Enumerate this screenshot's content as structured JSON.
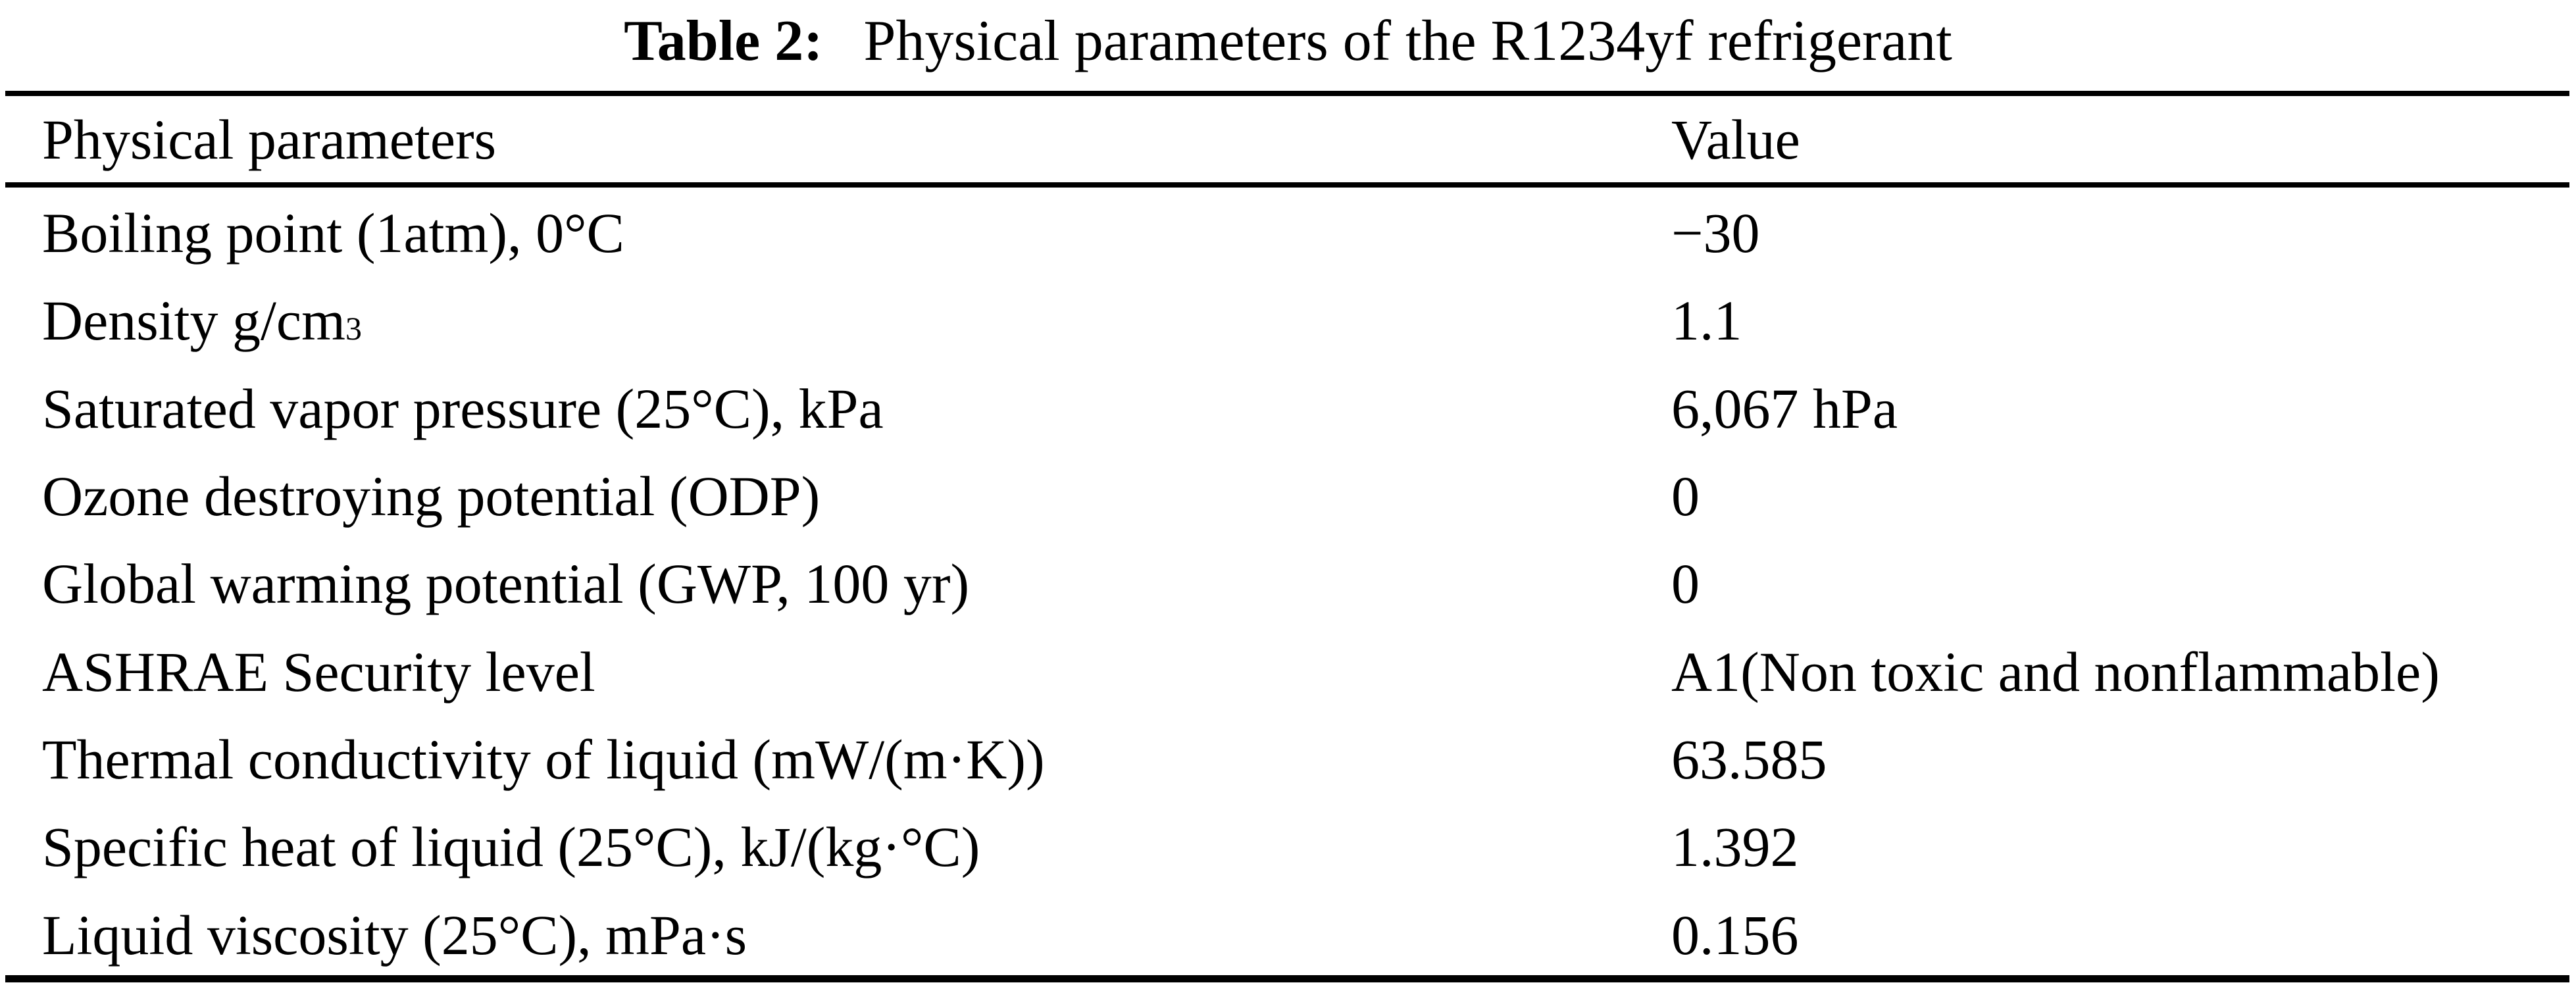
{
  "colors": {
    "text": "#000000",
    "background": "#ffffff",
    "rule": "#000000"
  },
  "table": {
    "caption": {
      "label": "Table 2:",
      "text": "Physical parameters of the R1234yf refrigerant"
    },
    "columns": {
      "parameter": "Physical parameters",
      "value": "Value"
    },
    "rows": [
      {
        "param_parts": [
          {
            "text": "Boiling point (1atm), 0°C"
          }
        ],
        "value": "−30"
      },
      {
        "param_parts": [
          {
            "text": "Density g/cm"
          },
          {
            "sup": "3"
          }
        ],
        "value": "1.1"
      },
      {
        "param_parts": [
          {
            "text": "Saturated vapor pressure (25°C), kPa"
          }
        ],
        "value": "6,067 hPa"
      },
      {
        "param_parts": [
          {
            "text": "Ozone destroying potential (ODP)"
          }
        ],
        "value": "0"
      },
      {
        "param_parts": [
          {
            "text": "Global warming potential (GWP, 100 yr)"
          }
        ],
        "value": "0"
      },
      {
        "param_parts": [
          {
            "text": "ASHRAE Security level"
          }
        ],
        "value": "A1(Non toxic and nonflammable)"
      },
      {
        "param_parts": [
          {
            "text": "Thermal conductivity of liquid (mW/(m·K))"
          }
        ],
        "value": "63.585"
      },
      {
        "param_parts": [
          {
            "text": "Specific heat of liquid (25°C), kJ/(kg·°C)"
          }
        ],
        "value": "1.392"
      },
      {
        "param_parts": [
          {
            "text": "Liquid viscosity (25°C), mPa·s"
          }
        ],
        "value": "0.156"
      }
    ]
  }
}
